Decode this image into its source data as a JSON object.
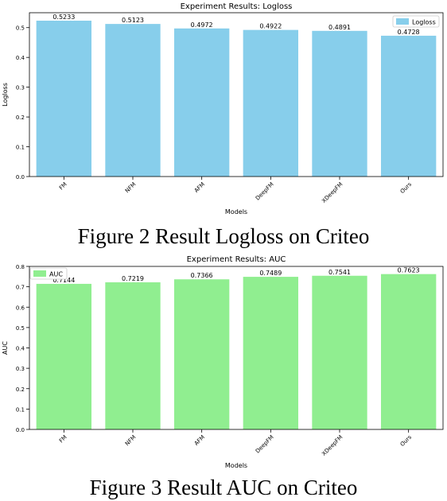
{
  "chart_data": [
    {
      "type": "bar",
      "title": "Experiment Results: Logloss",
      "xlabel": "Models",
      "ylabel": "Logloss",
      "categories": [
        "FM",
        "NFM",
        "AFM",
        "DeepFM",
        "XDeepFM",
        "Ours"
      ],
      "series": [
        {
          "name": "Logloss",
          "values": [
            0.5233,
            0.5123,
            0.4972,
            0.4922,
            0.4891,
            0.4728
          ]
        }
      ],
      "data_labels": [
        "0.5233",
        "0.5123",
        "0.4972",
        "0.4922",
        "0.4891",
        "0.4728"
      ],
      "ylim": [
        0,
        0.55
      ],
      "yticks": [
        0.0,
        0.1,
        0.2,
        0.3,
        0.4,
        0.5
      ],
      "ytick_labels": [
        "0.0",
        "0.1",
        "0.2",
        "0.3",
        "0.4",
        "0.5"
      ],
      "legend": "top-right",
      "grid": false,
      "color": "#87ceeb"
    },
    {
      "type": "bar",
      "title": "Experiment Results: AUC",
      "xlabel": "Models",
      "ylabel": "AUC",
      "categories": [
        "FM",
        "NFM",
        "AFM",
        "DeepFM",
        "XDeepFM",
        "Ours"
      ],
      "series": [
        {
          "name": "AUC",
          "values": [
            0.7144,
            0.7219,
            0.7366,
            0.7489,
            0.7541,
            0.7623
          ]
        }
      ],
      "data_labels": [
        "0.7144",
        "0.7219",
        "0.7366",
        "0.7489",
        "0.7541",
        "0.7623"
      ],
      "ylim": [
        0,
        0.8
      ],
      "yticks": [
        0.0,
        0.1,
        0.2,
        0.3,
        0.4,
        0.5,
        0.6,
        0.7,
        0.8
      ],
      "ytick_labels": [
        "0.0",
        "0.1",
        "0.2",
        "0.3",
        "0.4",
        "0.5",
        "0.6",
        "0.7",
        "0.8"
      ],
      "legend": "top-left",
      "grid": false,
      "color": "#90ee90"
    }
  ],
  "captions": {
    "figure2": "Figure 2 Result Logloss on Criteo",
    "figure3": "Figure 3 Result AUC on Criteo"
  }
}
